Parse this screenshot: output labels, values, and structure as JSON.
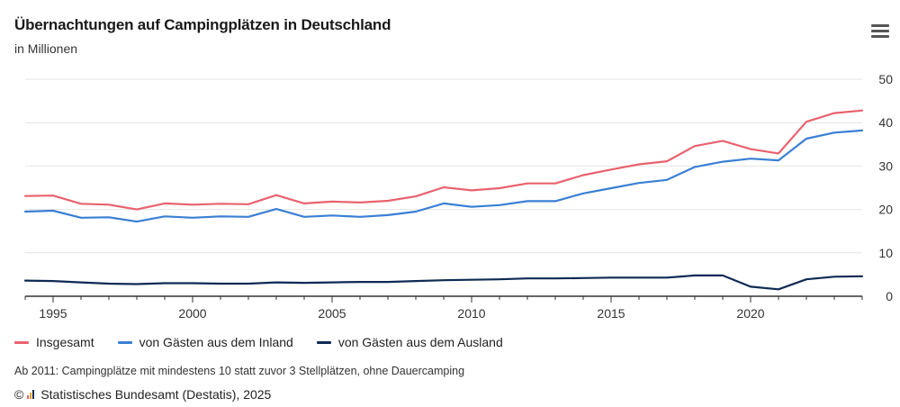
{
  "header": {
    "title": "Übernachtungen auf Campingplätzen in Deutschland",
    "subtitle": "in Millionen",
    "menu_icon": "hamburger-menu-icon"
  },
  "footer": {
    "note": "Ab 2011: Campingplätze mit mindestens 10 statt zuvor 3 Stellplätzen, ohne Dauercamping",
    "copyright_symbol": "©",
    "source": "Statistisches Bundesamt (Destatis), 2025"
  },
  "chart_data": {
    "type": "line",
    "x": [
      1994,
      1995,
      1996,
      1997,
      1998,
      1999,
      2000,
      2001,
      2002,
      2003,
      2004,
      2005,
      2006,
      2007,
      2008,
      2009,
      2010,
      2011,
      2012,
      2013,
      2014,
      2015,
      2016,
      2017,
      2018,
      2019,
      2020,
      2021,
      2022,
      2023,
      2024
    ],
    "xlim": [
      1994,
      2024
    ],
    "ylim": [
      0,
      50
    ],
    "x_ticks": [
      "1995",
      "2000",
      "2005",
      "2010",
      "2015",
      "2020"
    ],
    "y_ticks": [
      "0",
      "10",
      "20",
      "30",
      "40",
      "50"
    ],
    "grid": "horizontal",
    "legend_position": "bottom-left",
    "series": [
      {
        "name": "Insgesamt",
        "color": "#e8626e",
        "values": [
          23.1,
          23.2,
          21.3,
          21.1,
          20.0,
          21.4,
          21.1,
          21.3,
          21.2,
          23.3,
          21.4,
          21.8,
          21.6,
          22.0,
          23.0,
          25.1,
          24.4,
          24.9,
          26.0,
          26.0,
          27.9,
          29.2,
          30.4,
          31.1,
          34.6,
          35.8,
          33.9,
          32.9,
          40.2,
          42.2,
          42.8
        ],
        "values_precision": "estimated"
      },
      {
        "name": "von Gästen aus dem Inland",
        "color": "#3a7fd4",
        "values": [
          19.5,
          19.7,
          18.1,
          18.2,
          17.2,
          18.4,
          18.1,
          18.4,
          18.3,
          20.1,
          18.3,
          18.6,
          18.3,
          18.7,
          19.5,
          21.4,
          20.6,
          21.0,
          21.9,
          21.9,
          23.7,
          24.9,
          26.1,
          26.8,
          29.8,
          31.0,
          31.7,
          31.3,
          36.3,
          37.7,
          38.2
        ],
        "values_precision": "estimated"
      },
      {
        "name": "von Gästen aus dem Ausland",
        "color": "#0e2a55",
        "values": [
          3.6,
          3.5,
          3.2,
          2.9,
          2.8,
          3.0,
          3.0,
          2.9,
          2.9,
          3.2,
          3.1,
          3.2,
          3.3,
          3.3,
          3.5,
          3.7,
          3.8,
          3.9,
          4.1,
          4.1,
          4.2,
          4.3,
          4.3,
          4.3,
          4.8,
          4.8,
          2.2,
          1.6,
          3.9,
          4.5,
          4.6
        ],
        "values_precision": "estimated"
      }
    ]
  }
}
